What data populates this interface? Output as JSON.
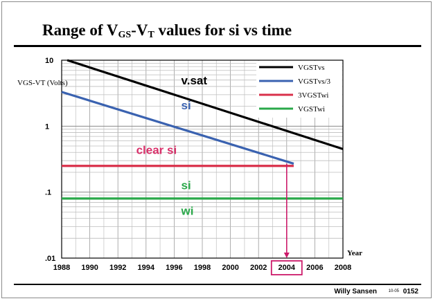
{
  "slide": {
    "title_prefix": "Range of V",
    "title_sub1": "GS",
    "title_mid": "-V",
    "title_sub2": "T",
    "title_suffix": " values for si vs time",
    "footer_author": "Willy Sansen",
    "footer_date": "10-05",
    "footer_page": "0152"
  },
  "chart_data": {
    "type": "line",
    "ylabel": "VGS-VT (Volts)",
    "xlabel": "Year",
    "yscale": "log",
    "xlim": [
      1988,
      2008
    ],
    "ylim": [
      0.01,
      10
    ],
    "grid": true,
    "legend_position": "top-right",
    "x_ticks": [
      1988,
      1990,
      1992,
      1994,
      1996,
      1998,
      2000,
      2002,
      2004,
      2006,
      2008
    ],
    "y_ticks": [
      {
        "value": 10,
        "label": "10"
      },
      {
        "value": 1,
        "label": "1"
      },
      {
        "value": 0.1,
        "label": ".1"
      },
      {
        "value": 0.01,
        "label": ".01"
      }
    ],
    "series": [
      {
        "name": "VGSTvs",
        "color": "#000000",
        "points": [
          [
            1988.4,
            10
          ],
          [
            2008,
            0.45
          ]
        ]
      },
      {
        "name": "VGSTvs/3",
        "color": "#3a62b0",
        "points": [
          [
            1988,
            3.3
          ],
          [
            2004.5,
            0.27
          ]
        ]
      },
      {
        "name": "3VGSTwi",
        "color": "#d9304a",
        "points": [
          [
            1988,
            0.25
          ],
          [
            2004.5,
            0.25
          ]
        ]
      },
      {
        "name": "VGSTwi",
        "color": "#2aa84a",
        "points": [
          [
            1988,
            0.08
          ],
          [
            2008,
            0.08
          ]
        ]
      }
    ],
    "annotations": [
      {
        "text": "v.sat",
        "x": 1996.5,
        "y": 4.3,
        "color": "#000000"
      },
      {
        "text": "si",
        "x": 1996.5,
        "y": 1.8,
        "color": "#3a62b0"
      },
      {
        "text": "clear si",
        "x": 1993.3,
        "y": 0.38,
        "color": "#d9306a"
      },
      {
        "text": "si",
        "x": 1996.5,
        "y": 0.11,
        "color": "#2aa84a"
      },
      {
        "text": "wi",
        "x": 1996.5,
        "y": 0.045,
        "color": "#2aa84a"
      }
    ],
    "highlight": {
      "year": 2004,
      "color": "#cc1a6a"
    }
  }
}
